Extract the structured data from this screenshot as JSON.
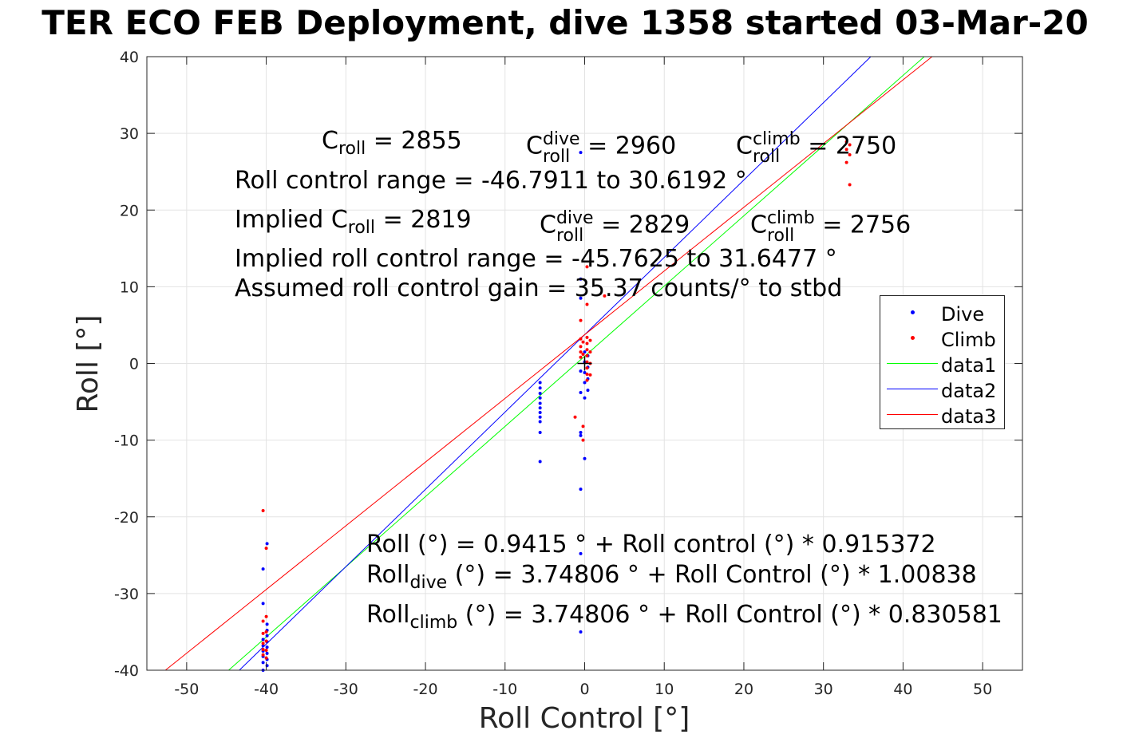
{
  "title": "TER ECO FEB Deployment, dive 1358 started 03-Mar-20",
  "chart_data": {
    "type": "scatter",
    "xlabel": "Roll Control [°]",
    "ylabel": "Roll [°]",
    "xlim": [
      -55,
      55
    ],
    "ylim": [
      -40,
      40
    ],
    "xticks": [
      -50,
      -40,
      -30,
      -20,
      -10,
      0,
      10,
      20,
      30,
      40,
      50
    ],
    "yticks": [
      -40,
      -30,
      -20,
      -10,
      0,
      10,
      20,
      30,
      40
    ],
    "grid": true,
    "legend_location": "right",
    "scatter_series": [
      {
        "name": "Dive",
        "color": "#0000ff",
        "points": [
          [
            -40.4,
            -26.8
          ],
          [
            -40.4,
            -31.3
          ],
          [
            -40.4,
            -36.0
          ],
          [
            -40.4,
            -36.8
          ],
          [
            -40.4,
            -37.5
          ],
          [
            -40.4,
            -38.2
          ],
          [
            -40.4,
            -39.0
          ],
          [
            -40.4,
            -40.0
          ],
          [
            -39.9,
            -23.5
          ],
          [
            -39.9,
            -34.0
          ],
          [
            -39.9,
            -34.8
          ],
          [
            -39.9,
            -35.5
          ],
          [
            -39.9,
            -36.3
          ],
          [
            -39.9,
            -37.0
          ],
          [
            -39.9,
            -37.8
          ],
          [
            -39.9,
            -38.6
          ],
          [
            -39.9,
            -39.4
          ],
          [
            -5.6,
            -2.5
          ],
          [
            -5.6,
            -3.2
          ],
          [
            -5.6,
            -3.9
          ],
          [
            -5.6,
            -4.5
          ],
          [
            -5.6,
            -5.2
          ],
          [
            -5.6,
            -5.8
          ],
          [
            -5.6,
            -6.4
          ],
          [
            -5.6,
            -7.0
          ],
          [
            -5.6,
            -7.6
          ],
          [
            -5.6,
            -9.0
          ],
          [
            -5.6,
            -12.8
          ],
          [
            -0.5,
            27.5
          ],
          [
            -0.5,
            11.0
          ],
          [
            -0.5,
            8.5
          ],
          [
            -0.5,
            -1.0
          ],
          [
            -0.5,
            -3.8
          ],
          [
            -0.5,
            -9.0
          ],
          [
            -0.5,
            -9.4
          ],
          [
            -0.5,
            -16.4
          ],
          [
            -0.5,
            -24.8
          ],
          [
            -0.5,
            -35.0
          ],
          [
            0.0,
            1.5
          ],
          [
            0.0,
            0.2
          ],
          [
            0.0,
            -1.2
          ],
          [
            0.0,
            -2.5
          ],
          [
            0.0,
            -4.5
          ],
          [
            0.0,
            -12.4
          ],
          [
            0.4,
            1.0
          ],
          [
            0.4,
            -0.5
          ],
          [
            0.4,
            -2.0
          ],
          [
            0.4,
            -3.5
          ]
        ]
      },
      {
        "name": "Climb",
        "color": "#ff0000",
        "points": [
          [
            -40.4,
            -19.2
          ],
          [
            -40.4,
            -33.6
          ],
          [
            -40.4,
            -35.2
          ],
          [
            -40.4,
            -36.5
          ],
          [
            -40.4,
            -37.3
          ],
          [
            -40.4,
            -38.0
          ],
          [
            -40.0,
            -24.1
          ],
          [
            -40.0,
            -33.0
          ],
          [
            -40.0,
            -35.0
          ],
          [
            -40.0,
            -36.2
          ],
          [
            -40.0,
            -37.4
          ],
          [
            -40.0,
            -38.4
          ],
          [
            -1.2,
            -7.0
          ],
          [
            -0.5,
            5.6
          ],
          [
            -0.5,
            3.2
          ],
          [
            -0.5,
            2.2
          ],
          [
            -0.5,
            1.5
          ],
          [
            -0.5,
            0.8
          ],
          [
            -0.2,
            -8.2
          ],
          [
            -0.2,
            -10.0
          ],
          [
            -0.2,
            2.8
          ],
          [
            -0.2,
            1.2
          ],
          [
            0.3,
            12.6
          ],
          [
            0.3,
            7.7
          ],
          [
            0.3,
            3.4
          ],
          [
            0.3,
            2.6
          ],
          [
            0.3,
            1.8
          ],
          [
            0.3,
            1.0
          ],
          [
            0.3,
            0.2
          ],
          [
            0.3,
            -0.6
          ],
          [
            0.3,
            -1.4
          ],
          [
            0.3,
            -2.2
          ],
          [
            0.7,
            3.0
          ],
          [
            0.7,
            1.5
          ],
          [
            0.7,
            0.0
          ],
          [
            0.7,
            -1.5
          ],
          [
            2.5,
            8.8
          ],
          [
            32.9,
            28.9
          ],
          [
            32.9,
            27.9
          ],
          [
            32.9,
            26.2
          ],
          [
            33.3,
            28.5
          ],
          [
            33.3,
            27.2
          ],
          [
            33.3,
            23.3
          ]
        ]
      }
    ],
    "line_series": [
      {
        "name": "data1",
        "color": "#00ff00",
        "intercept": 0.9415,
        "slope": 0.915372
      },
      {
        "name": "data2",
        "color": "#0000ff",
        "intercept": 3.74806,
        "slope": 1.00838
      },
      {
        "name": "data3",
        "color": "#ff0000",
        "intercept": 3.74806,
        "slope": 0.830581
      }
    ]
  },
  "annotations": {
    "c_roll": {
      "base": "C",
      "sub": "roll",
      "value": " = 2855"
    },
    "c_roll_dive": {
      "base": "C",
      "sup": "dive",
      "sub": "roll",
      "value": " = 2960"
    },
    "c_roll_climb": {
      "base": "C",
      "sup": "climb",
      "sub": "roll",
      "value": " = 2750"
    },
    "roll_control_range": "Roll control range = -46.7911 to 30.6192 °",
    "implied_prefix": "Implied C",
    "implied_sub": "roll",
    "implied_value": " = 2819",
    "implied_dive": {
      "base": "C",
      "sup": "dive",
      "sub": "roll",
      "value": " = 2829"
    },
    "implied_climb": {
      "base": "C",
      "sup": "climb",
      "sub": "roll",
      "value": " = 2756"
    },
    "implied_range": "Implied roll control range = -45.7625 to 31.6477 °",
    "assumed_gain": "Assumed roll control gain = 35.37 counts/° to stbd",
    "fit_overall": "Roll (°) = 0.9415 ° + Roll control (°) * 0.915372",
    "fit_dive_base": "Roll",
    "fit_dive_sub": "dive",
    "fit_dive_rest": " (°) = 3.74806 ° + Roll Control (°) * 1.00838",
    "fit_climb_base": "Roll",
    "fit_climb_sub": "climb",
    "fit_climb_rest": " (°) = 3.74806 ° + Roll Control (°) * 0.830581"
  }
}
